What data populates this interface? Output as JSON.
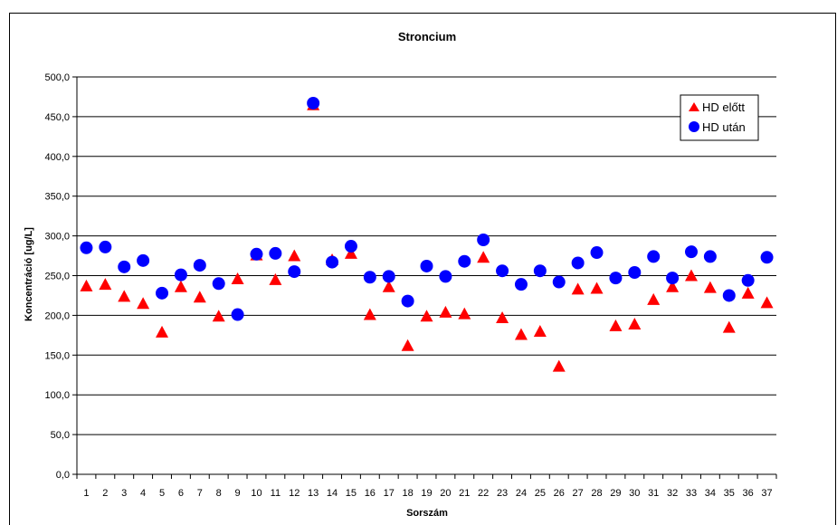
{
  "chart_data": {
    "type": "scatter",
    "title": "Stroncium",
    "xlabel": "Sorszám",
    "ylabel": "Koncentráció [ug/L]",
    "ylim": [
      0,
      500
    ],
    "y_ticks": [
      "0,0",
      "50,0",
      "100,0",
      "150,0",
      "200,0",
      "250,0",
      "300,0",
      "350,0",
      "400,0",
      "450,0",
      "500,0"
    ],
    "categories": [
      "1",
      "2",
      "3",
      "4",
      "5",
      "6",
      "7",
      "8",
      "9",
      "10",
      "11",
      "12",
      "13",
      "14",
      "15",
      "16",
      "17",
      "18",
      "19",
      "20",
      "21",
      "22",
      "23",
      "24",
      "25",
      "26",
      "27",
      "28",
      "29",
      "30",
      "31",
      "32",
      "33",
      "34",
      "35",
      "36",
      "37"
    ],
    "grid": true,
    "legend_position": "top-right",
    "series": [
      {
        "name": "HD előtt",
        "marker": "triangle",
        "color": "#ff0000",
        "values": [
          237,
          239,
          224,
          215,
          179,
          236,
          223,
          199,
          246,
          276,
          245,
          275,
          465,
          270,
          278,
          201,
          236,
          162,
          199,
          204,
          202,
          273,
          197,
          176,
          180,
          136,
          233,
          234,
          187,
          189,
          220,
          236,
          250,
          235,
          185,
          228,
          216
        ]
      },
      {
        "name": "HD után",
        "marker": "circle",
        "color": "#0000ff",
        "values": [
          285,
          286,
          261,
          269,
          228,
          251,
          263,
          240,
          201,
          277,
          278,
          255,
          467,
          267,
          287,
          248,
          249,
          218,
          262,
          249,
          268,
          295,
          256,
          239,
          256,
          242,
          266,
          279,
          247,
          254,
          274,
          247,
          280,
          274,
          225,
          244,
          273
        ]
      }
    ]
  }
}
